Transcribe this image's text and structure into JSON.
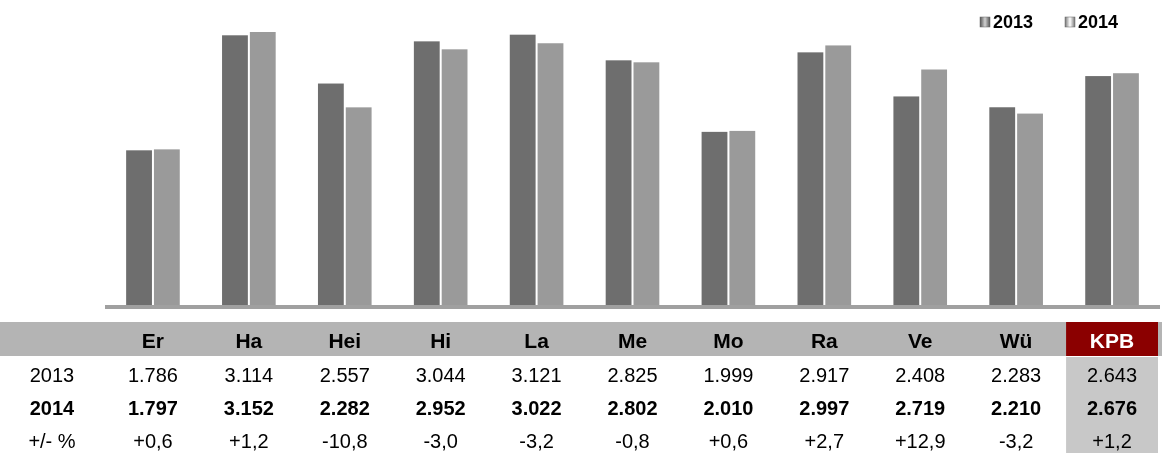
{
  "chart_data": {
    "type": "bar",
    "categories": [
      "Er",
      "Ha",
      "Hei",
      "Hi",
      "La",
      "Me",
      "Mo",
      "Ra",
      "Ve",
      "Wü",
      "KPB"
    ],
    "series": [
      {
        "name": "2013",
        "color": "#6e6e6e",
        "values": [
          1786,
          3114,
          2557,
          3044,
          3121,
          2825,
          1999,
          2917,
          2408,
          2283,
          2643
        ],
        "value_labels": [
          "1.786",
          "3.114",
          "2.557",
          "3.044",
          "3.121",
          "2.825",
          "1.999",
          "2.917",
          "2.408",
          "2.283",
          "2.643"
        ]
      },
      {
        "name": "2014",
        "color": "#9a9a9a",
        "values": [
          1797,
          3152,
          2282,
          2952,
          3022,
          2802,
          2010,
          2997,
          2719,
          2210,
          2676
        ],
        "value_labels": [
          "1.797",
          "3.152",
          "2.282",
          "2.952",
          "3.022",
          "2.802",
          "2.010",
          "2.997",
          "2.719",
          "2.210",
          "2.676"
        ]
      }
    ],
    "legend": "top right",
    "annotations": [
      "+/- %",
      "+0,6",
      "+1,2",
      "-10,8",
      "-3,0",
      "-3,2",
      "-0,8",
      "+0,6",
      "+2,7",
      "+12,9",
      "-3,2",
      "+1,2"
    ]
  }
}
